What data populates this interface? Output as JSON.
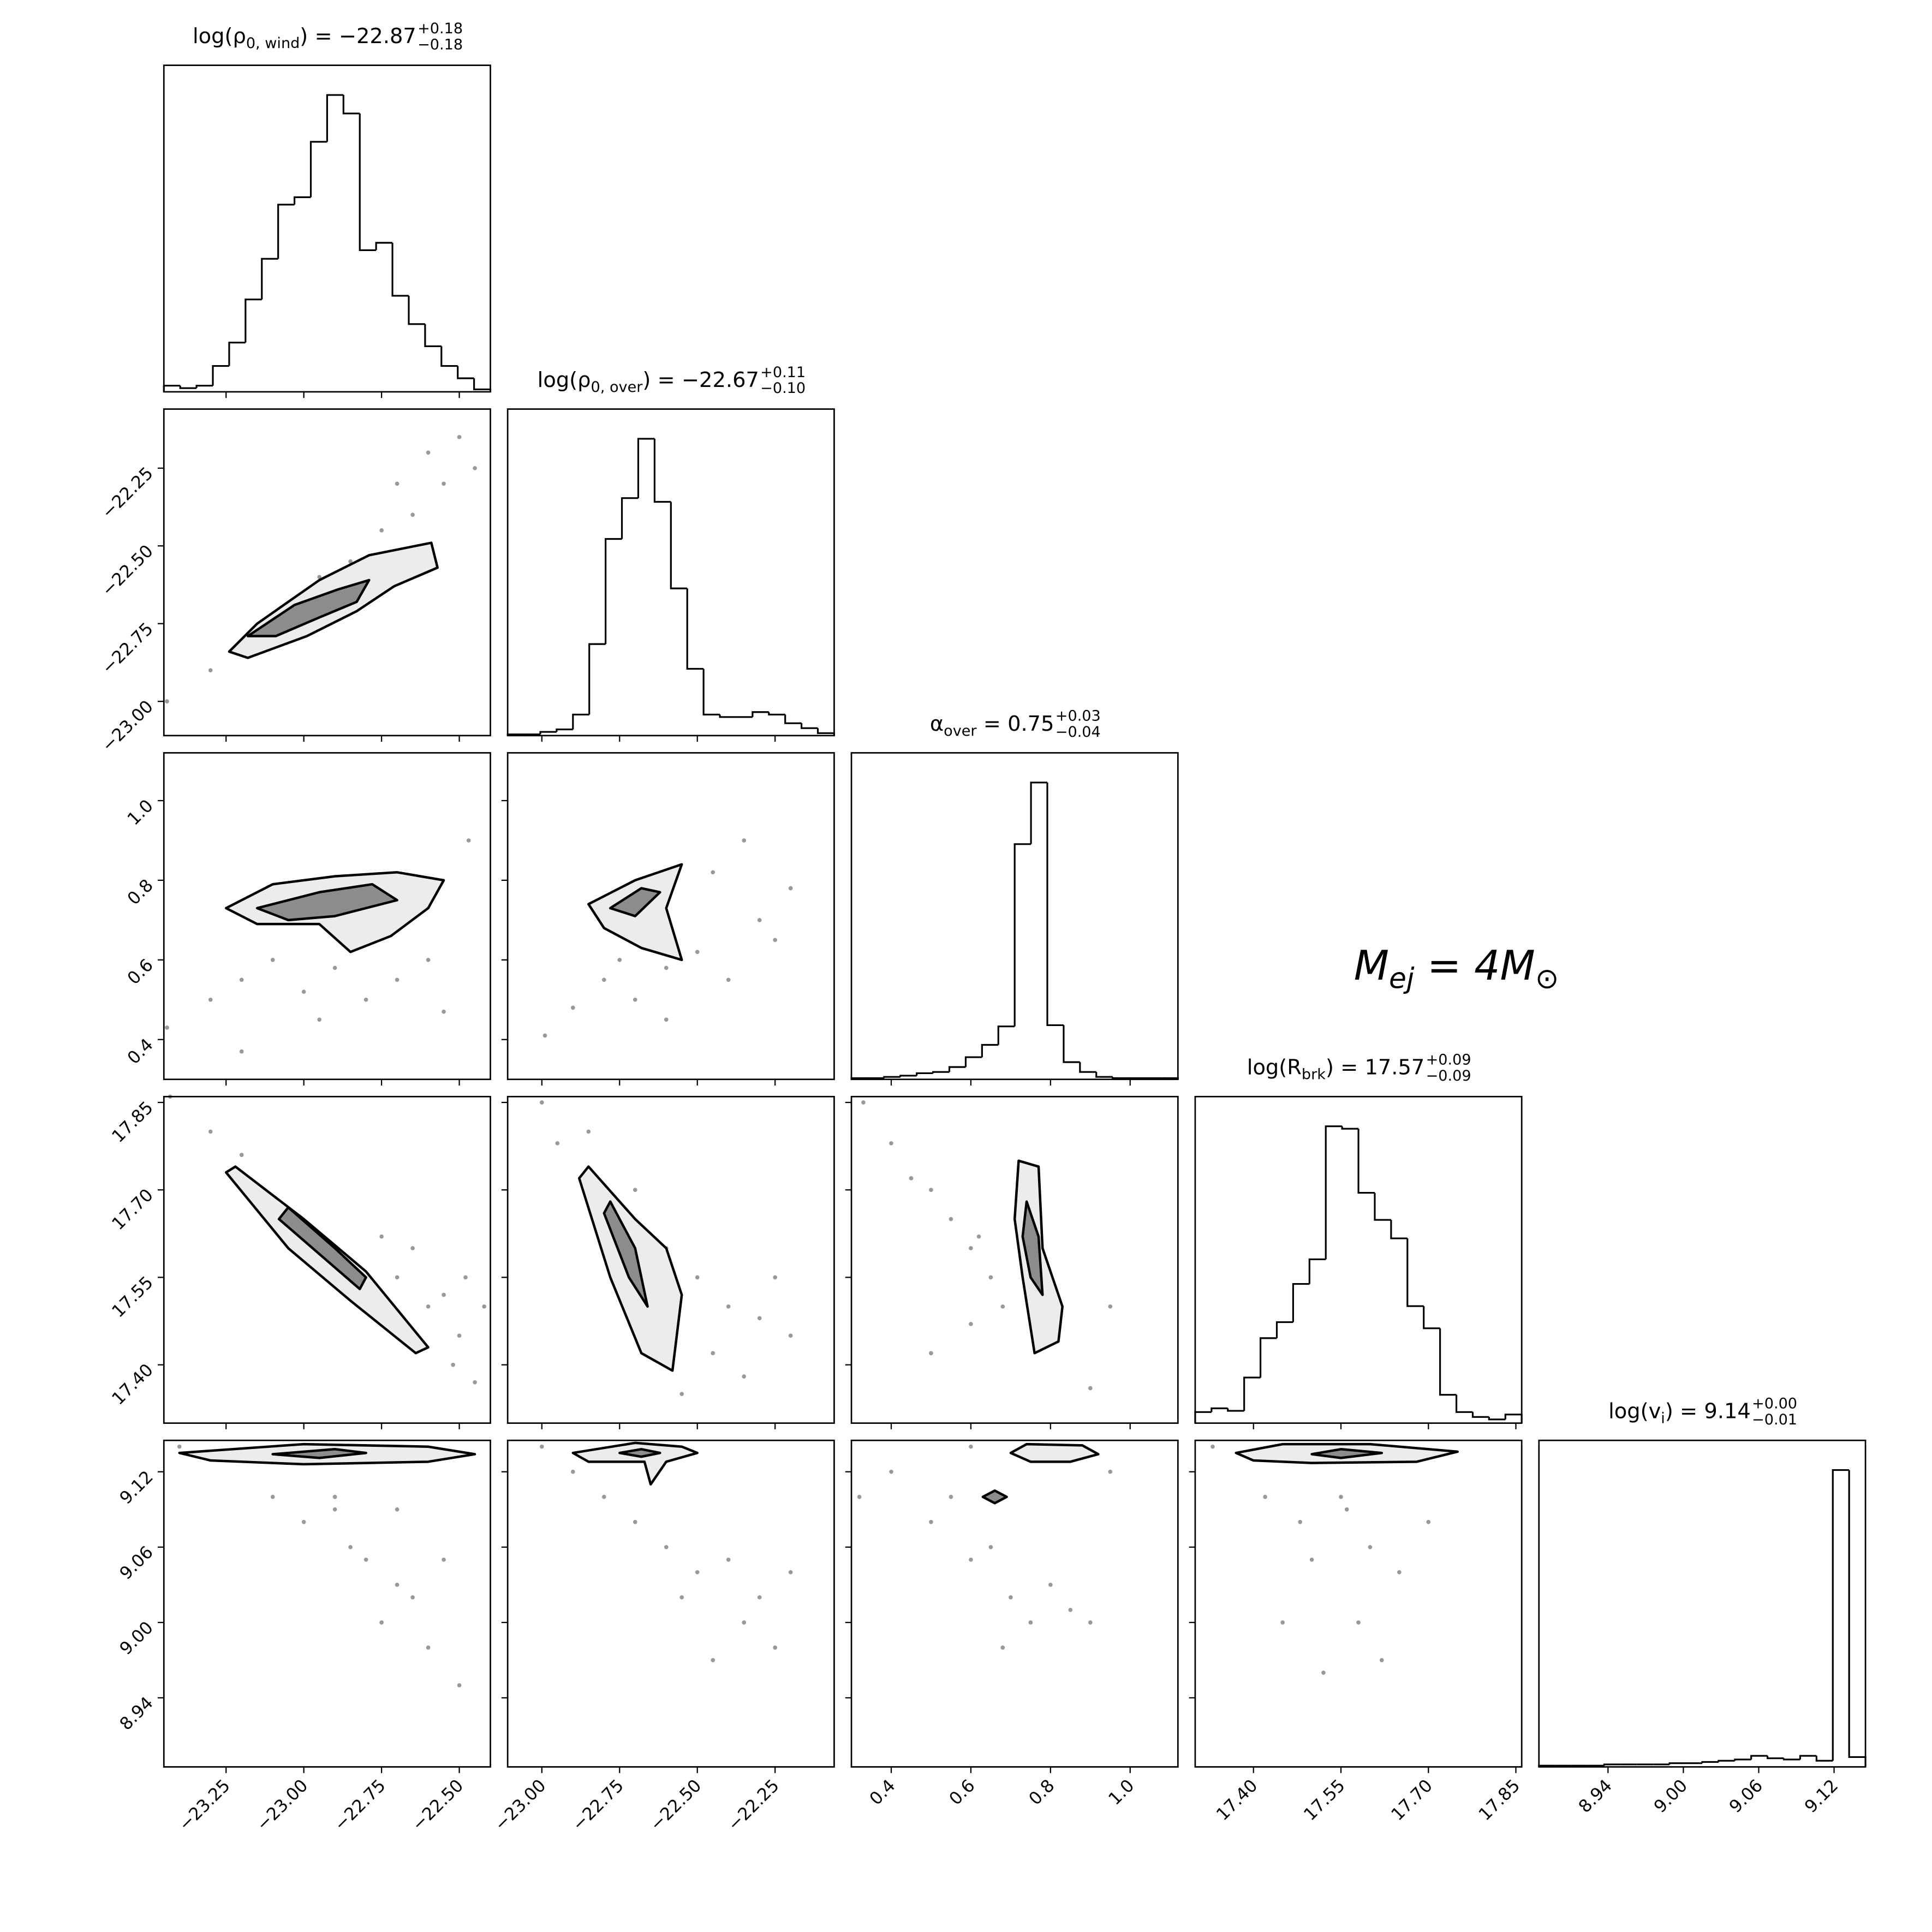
{
  "chart_data": [
    {
      "type": "histogram",
      "title_parts": [
        "log(ρ",
        "0, wind",
        ") = −22.87"
      ],
      "title_upper": "+0.18",
      "title_lower": "−0.18",
      "bins": [
        -23.45,
        -23.3975,
        -23.345,
        -23.2925,
        -23.24,
        -23.1875,
        -23.135,
        -23.0825,
        -23.03,
        -22.9775,
        -22.925,
        -22.8725,
        -22.82,
        -22.7675,
        -22.715,
        -22.6625,
        -22.61,
        -22.5575,
        -22.505,
        -22.4525,
        -22.4
      ],
      "values": [
        5,
        3,
        5,
        21,
        40,
        75,
        108,
        152,
        158,
        203,
        241,
        226,
        115,
        121,
        78,
        55,
        37,
        21,
        11,
        2
      ],
      "xlim": [
        -23.45,
        -22.4
      ]
    },
    {
      "type": "scatter",
      "xlim": [
        -23.45,
        -22.4
      ],
      "ylim": [
        -23.11,
        -22.06
      ],
      "yticks": [
        {
          "value": -23.0,
          "label": "−23.00"
        },
        {
          "value": -22.75,
          "label": "−22.75"
        },
        {
          "value": -22.5,
          "label": "−22.50"
        },
        {
          "value": -22.25,
          "label": "−22.25"
        }
      ],
      "x": [
        -23.44,
        -23.3,
        -23.2,
        -23.1,
        -23.0,
        -22.95,
        -22.85,
        -22.75,
        -22.7,
        -22.65,
        -22.6,
        -22.55,
        -22.5,
        -22.45,
        -22.8,
        -22.9,
        -23.05
      ],
      "y": [
        -23.0,
        -22.9,
        -22.85,
        -22.75,
        -22.7,
        -22.6,
        -22.55,
        -22.45,
        -22.3,
        -22.4,
        -22.2,
        -22.3,
        -22.15,
        -22.25,
        -22.6,
        -22.7,
        -22.8
      ],
      "contours": [
        {
          "x": [
            -23.24,
            -23.15,
            -22.95,
            -22.79,
            -22.59,
            -22.57,
            -22.71,
            -22.83,
            -22.99,
            -23.18
          ],
          "y": [
            -22.84,
            -22.75,
            -22.61,
            -22.53,
            -22.49,
            -22.57,
            -22.63,
            -22.71,
            -22.79,
            -22.86
          ]
        },
        {
          "x": [
            -23.18,
            -23.03,
            -22.89,
            -22.79,
            -22.83,
            -22.95,
            -23.09
          ],
          "y": [
            -22.79,
            -22.69,
            -22.64,
            -22.61,
            -22.68,
            -22.73,
            -22.79
          ]
        }
      ]
    },
    {
      "type": "histogram",
      "title_parts": [
        "log(ρ",
        "0, over",
        ") = −22.67"
      ],
      "title_upper": "+0.11",
      "title_lower": "−0.10",
      "bins": [
        -23.11,
        -23.0575,
        -23.005,
        -22.9525,
        -22.9,
        -22.8475,
        -22.795,
        -22.7425,
        -22.69,
        -22.6375,
        -22.585,
        -22.5325,
        -22.48,
        -22.4275,
        -22.375,
        -22.3225,
        -22.27,
        -22.2175,
        -22.165,
        -22.1125,
        -22.06
      ],
      "values": [
        1,
        1,
        3,
        5,
        17,
        74,
        159,
        192,
        240,
        189,
        119,
        54,
        17,
        15,
        15,
        19,
        17,
        10,
        6,
        2
      ],
      "xlim": [
        -23.11,
        -22.06
      ]
    },
    {
      "type": "scatter",
      "xlim": [
        -23.45,
        -22.4
      ],
      "ylim": [
        0.3,
        1.12
      ],
      "yticks": [
        0.4,
        0.6,
        0.8,
        {
          "value": 1.0,
          "label": "1.0"
        }
      ],
      "x": [
        -23.44,
        -23.3,
        -23.2,
        -23.1,
        -23.0,
        -22.95,
        -22.9,
        -22.8,
        -22.7,
        -22.6,
        -22.55,
        -22.47,
        -23.2,
        -22.85
      ],
      "y": [
        0.43,
        0.5,
        0.55,
        0.6,
        0.52,
        0.45,
        0.58,
        0.5,
        0.55,
        0.6,
        0.47,
        0.9,
        0.37,
        0.67
      ],
      "contours": [
        {
          "x": [
            -23.25,
            -23.1,
            -22.9,
            -22.7,
            -22.55,
            -22.6,
            -22.72,
            -22.85,
            -22.95,
            -23.15
          ],
          "y": [
            0.73,
            0.79,
            0.81,
            0.82,
            0.8,
            0.73,
            0.66,
            0.62,
            0.69,
            0.69
          ]
        },
        {
          "x": [
            -23.15,
            -22.95,
            -22.78,
            -22.7,
            -22.9,
            -23.05
          ],
          "y": [
            0.73,
            0.77,
            0.79,
            0.75,
            0.71,
            0.7
          ]
        }
      ]
    },
    {
      "type": "scatter",
      "xlim": [
        -23.11,
        -22.06
      ],
      "ylim": [
        0.3,
        1.12
      ],
      "x": [
        -22.99,
        -22.9,
        -22.8,
        -22.7,
        -22.6,
        -22.5,
        -22.4,
        -22.3,
        -22.25,
        -22.2,
        -22.45,
        -22.35,
        -22.6,
        -22.75
      ],
      "y": [
        0.41,
        0.48,
        0.55,
        0.5,
        0.58,
        0.62,
        0.55,
        0.7,
        0.65,
        0.78,
        0.82,
        0.9,
        0.45,
        0.6
      ],
      "contours": [
        {
          "x": [
            -22.85,
            -22.7,
            -22.55,
            -22.6,
            -22.55,
            -22.68,
            -22.8
          ],
          "y": [
            0.74,
            0.8,
            0.84,
            0.73,
            0.6,
            0.63,
            0.68
          ]
        },
        {
          "x": [
            -22.78,
            -22.68,
            -22.62,
            -22.7
          ],
          "y": [
            0.73,
            0.78,
            0.77,
            0.71
          ]
        }
      ]
    },
    {
      "type": "histogram",
      "title_parts": [
        "α",
        "over",
        " = 0.75"
      ],
      "title_upper": "+0.03",
      "title_lower": "−0.04",
      "bins": [
        0.3,
        0.341,
        0.382,
        0.423,
        0.464,
        0.505,
        0.546,
        0.587,
        0.628,
        0.669,
        0.71,
        0.751,
        0.792,
        0.833,
        0.874,
        0.915,
        0.956,
        0.997,
        1.038,
        1.079,
        1.12
      ],
      "values": [
        1,
        1,
        2,
        3,
        5,
        6,
        10,
        18,
        28,
        43,
        191,
        241,
        44,
        14,
        6,
        2,
        1,
        1,
        1,
        1
      ],
      "xlim": [
        0.3,
        1.12
      ]
    },
    {
      "type": "scatter",
      "xlim": [
        -23.45,
        -22.4
      ],
      "ylim": [
        17.3,
        17.86
      ],
      "yticks": [
        {
          "value": 17.4,
          "label": "17.40"
        },
        17.55,
        {
          "value": 17.7,
          "label": "17.70"
        },
        17.85
      ],
      "x": [
        -23.43,
        -23.3,
        -23.2,
        -22.7,
        -22.6,
        -22.55,
        -22.5,
        -22.45,
        -22.42,
        -22.65,
        -22.75,
        -22.52,
        -22.48
      ],
      "y": [
        17.86,
        17.8,
        17.76,
        17.55,
        17.5,
        17.52,
        17.45,
        17.37,
        17.5,
        17.6,
        17.62,
        17.4,
        17.55
      ],
      "contours": [
        {
          "x": [
            -23.22,
            -23.0,
            -22.8,
            -22.6,
            -22.64,
            -22.85,
            -23.05,
            -23.25
          ],
          "y": [
            17.74,
            17.65,
            17.56,
            17.43,
            17.42,
            17.51,
            17.6,
            17.73
          ]
        },
        {
          "x": [
            -23.05,
            -22.9,
            -22.8,
            -22.82,
            -22.95,
            -23.08
          ],
          "y": [
            17.67,
            17.6,
            17.55,
            17.53,
            17.59,
            17.65
          ]
        }
      ]
    },
    {
      "type": "scatter",
      "xlim": [
        -23.11,
        -22.06
      ],
      "ylim": [
        17.3,
        17.86
      ],
      "x": [
        -23.0,
        -22.95,
        -22.85,
        -22.6,
        -22.5,
        -22.4,
        -22.3,
        -22.25,
        -22.2,
        -22.45,
        -22.55,
        -22.35,
        -22.7
      ],
      "y": [
        17.85,
        17.78,
        17.8,
        17.6,
        17.55,
        17.5,
        17.48,
        17.55,
        17.45,
        17.42,
        17.35,
        17.38,
        17.7
      ],
      "contours": [
        {
          "x": [
            -22.85,
            -22.7,
            -22.6,
            -22.55,
            -22.58,
            -22.68,
            -22.78,
            -22.88
          ],
          "y": [
            17.74,
            17.65,
            17.6,
            17.52,
            17.39,
            17.42,
            17.55,
            17.72
          ]
        },
        {
          "x": [
            -22.78,
            -22.7,
            -22.66,
            -22.72,
            -22.8
          ],
          "y": [
            17.68,
            17.6,
            17.5,
            17.55,
            17.66
          ]
        }
      ]
    },
    {
      "type": "scatter",
      "xlim": [
        0.3,
        1.12
      ],
      "ylim": [
        17.3,
        17.86
      ],
      "x": [
        0.33,
        0.4,
        0.45,
        0.5,
        0.55,
        0.6,
        0.65,
        0.6,
        0.68,
        0.9,
        0.95,
        0.5,
        0.62
      ],
      "y": [
        17.85,
        17.78,
        17.72,
        17.7,
        17.65,
        17.6,
        17.55,
        17.47,
        17.5,
        17.36,
        17.5,
        17.42,
        17.62
      ],
      "contours": [
        {
          "x": [
            0.72,
            0.77,
            0.78,
            0.83,
            0.82,
            0.76,
            0.73,
            0.71
          ],
          "y": [
            17.75,
            17.74,
            17.6,
            17.5,
            17.44,
            17.42,
            17.55,
            17.65
          ]
        },
        {
          "x": [
            0.74,
            0.77,
            0.78,
            0.75,
            0.73
          ],
          "y": [
            17.68,
            17.62,
            17.52,
            17.55,
            17.62
          ]
        }
      ]
    },
    {
      "type": "histogram",
      "title_parts": [
        "log(R",
        "brk",
        ") = 17.57"
      ],
      "title_upper": "+0.09",
      "title_lower": "−0.09",
      "bins": [
        17.3,
        17.328,
        17.356,
        17.384,
        17.412,
        17.44,
        17.468,
        17.496,
        17.524,
        17.552,
        17.58,
        17.608,
        17.636,
        17.664,
        17.692,
        17.72,
        17.748,
        17.776,
        17.804,
        17.832,
        17.86
      ],
      "values": [
        9,
        12,
        10,
        37,
        69,
        82,
        113,
        133,
        241,
        239,
        187,
        165,
        150,
        95,
        77,
        23,
        9,
        5,
        3,
        7
      ],
      "xlim": [
        17.3,
        17.86
      ]
    },
    {
      "type": "scatter",
      "xlim": [
        -23.45,
        -22.4
      ],
      "ylim": [
        8.885,
        9.145
      ],
      "xticks": [
        {
          "value": -23.25,
          "label": "−23.25"
        },
        {
          "value": -23.0,
          "label": "−23.00"
        },
        {
          "value": -22.75,
          "label": "−22.75"
        },
        {
          "value": -22.5,
          "label": "−22.50"
        }
      ],
      "yticks": [
        8.94,
        {
          "value": 9.0,
          "label": "9.00"
        },
        9.06,
        9.12
      ],
      "x": [
        -23.4,
        -23.1,
        -23.0,
        -22.9,
        -22.85,
        -22.8,
        -22.75,
        -22.7,
        -22.65,
        -22.6,
        -22.55,
        -22.5,
        -22.9,
        -22.7
      ],
      "y": [
        9.14,
        9.1,
        9.08,
        9.1,
        9.06,
        9.05,
        9.0,
        9.03,
        9.02,
        8.98,
        9.05,
        8.95,
        9.09,
        9.09
      ],
      "contours": [
        {
          "x": [
            -23.4,
            -23.0,
            -22.6,
            -22.45,
            -22.6,
            -23.0,
            -23.3
          ],
          "y": [
            9.135,
            9.142,
            9.14,
            9.134,
            9.128,
            9.126,
            9.129
          ]
        },
        {
          "x": [
            -23.1,
            -22.9,
            -22.8,
            -22.95
          ],
          "y": [
            9.134,
            9.138,
            9.135,
            9.131
          ]
        }
      ]
    },
    {
      "type": "scatter",
      "xlim": [
        -23.11,
        -22.06
      ],
      "ylim": [
        8.885,
        9.145
      ],
      "xticks": [
        {
          "value": -23.0,
          "label": "−23.00"
        },
        {
          "value": -22.75,
          "label": "−22.75"
        },
        {
          "value": -22.5,
          "label": "−22.50"
        },
        {
          "value": -22.25,
          "label": "−22.25"
        }
      ],
      "x": [
        -23.0,
        -22.8,
        -22.7,
        -22.6,
        -22.5,
        -22.4,
        -22.35,
        -22.3,
        -22.25,
        -22.2,
        -22.55,
        -22.45,
        -22.9
      ],
      "y": [
        9.14,
        9.1,
        9.08,
        9.06,
        9.04,
        9.05,
        9.0,
        9.02,
        8.98,
        9.04,
        9.02,
        8.97,
        9.12
      ],
      "contours": [
        {
          "x": [
            -22.9,
            -22.7,
            -22.55,
            -22.5,
            -22.6,
            -22.65,
            -22.67,
            -22.85
          ],
          "y": [
            9.135,
            9.143,
            9.14,
            9.135,
            9.128,
            9.11,
            9.128,
            9.128
          ]
        },
        {
          "x": [
            -22.75,
            -22.68,
            -22.62,
            -22.68
          ],
          "y": [
            9.135,
            9.138,
            9.135,
            9.132
          ]
        }
      ]
    },
    {
      "type": "scatter",
      "xlim": [
        0.3,
        1.12
      ],
      "ylim": [
        8.885,
        9.145
      ],
      "xticks": [
        0.4,
        0.6,
        0.8,
        {
          "value": 1.0,
          "label": "1.0"
        }
      ],
      "x": [
        0.32,
        0.4,
        0.5,
        0.55,
        0.6,
        0.65,
        0.7,
        0.75,
        0.8,
        0.85,
        0.68,
        0.9,
        0.6,
        0.95
      ],
      "y": [
        9.1,
        9.12,
        9.08,
        9.1,
        9.05,
        9.06,
        9.02,
        9.0,
        9.03,
        9.01,
        8.98,
        9.0,
        9.14,
        9.12
      ],
      "contours": [
        {
          "x": [
            0.7,
            0.74,
            0.88,
            0.92,
            0.85,
            0.75
          ],
          "y": [
            9.135,
            9.142,
            9.141,
            9.134,
            9.128,
            9.128
          ]
        },
        {
          "x": [
            0.66,
            0.69,
            0.66,
            0.63
          ],
          "y": [
            9.105,
            9.1,
            9.095,
            9.1
          ]
        }
      ]
    },
    {
      "type": "scatter",
      "xlim": [
        17.3,
        17.86
      ],
      "ylim": [
        8.885,
        9.145
      ],
      "xticks": [
        {
          "value": 17.4,
          "label": "17.40"
        },
        17.55,
        {
          "value": 17.7,
          "label": "17.70"
        },
        17.85
      ],
      "x": [
        17.33,
        17.42,
        17.48,
        17.5,
        17.55,
        17.6,
        17.65,
        17.45,
        17.58,
        17.62,
        17.7,
        17.52,
        17.56
      ],
      "y": [
        9.14,
        9.1,
        9.08,
        9.05,
        9.1,
        9.06,
        9.04,
        9.0,
        9.0,
        8.97,
        9.08,
        8.96,
        9.09
      ],
      "contours": [
        {
          "x": [
            17.37,
            17.45,
            17.6,
            17.75,
            17.68,
            17.5,
            17.4
          ],
          "y": [
            9.135,
            9.142,
            9.142,
            9.136,
            9.128,
            9.127,
            9.129
          ]
        },
        {
          "x": [
            17.5,
            17.55,
            17.62,
            17.55
          ],
          "y": [
            9.134,
            9.138,
            9.135,
            9.131
          ]
        }
      ]
    },
    {
      "type": "histogram",
      "title_parts": [
        "log(v",
        "i",
        ") = 9.14"
      ],
      "title_upper": "+0.00",
      "title_lower": "−0.01",
      "bins": [
        8.885,
        8.898,
        8.911,
        8.924,
        8.937,
        8.95,
        8.963,
        8.976,
        8.989,
        9.002,
        9.015,
        9.028,
        9.041,
        9.054,
        9.067,
        9.08,
        9.093,
        9.106,
        9.119,
        9.132,
        9.145
      ],
      "values": [
        1,
        1,
        1,
        1,
        2,
        2,
        2,
        2,
        3,
        3,
        4,
        5,
        6,
        9,
        7,
        6,
        9,
        5,
        241,
        8
      ],
      "xlim": [
        8.885,
        9.145
      ],
      "xticks": [
        8.94,
        {
          "value": 9.0,
          "label": "9.00"
        },
        9.06,
        9.12
      ]
    }
  ],
  "annotation": [
    "M",
    "ej",
    " = 4M",
    "⊙"
  ]
}
